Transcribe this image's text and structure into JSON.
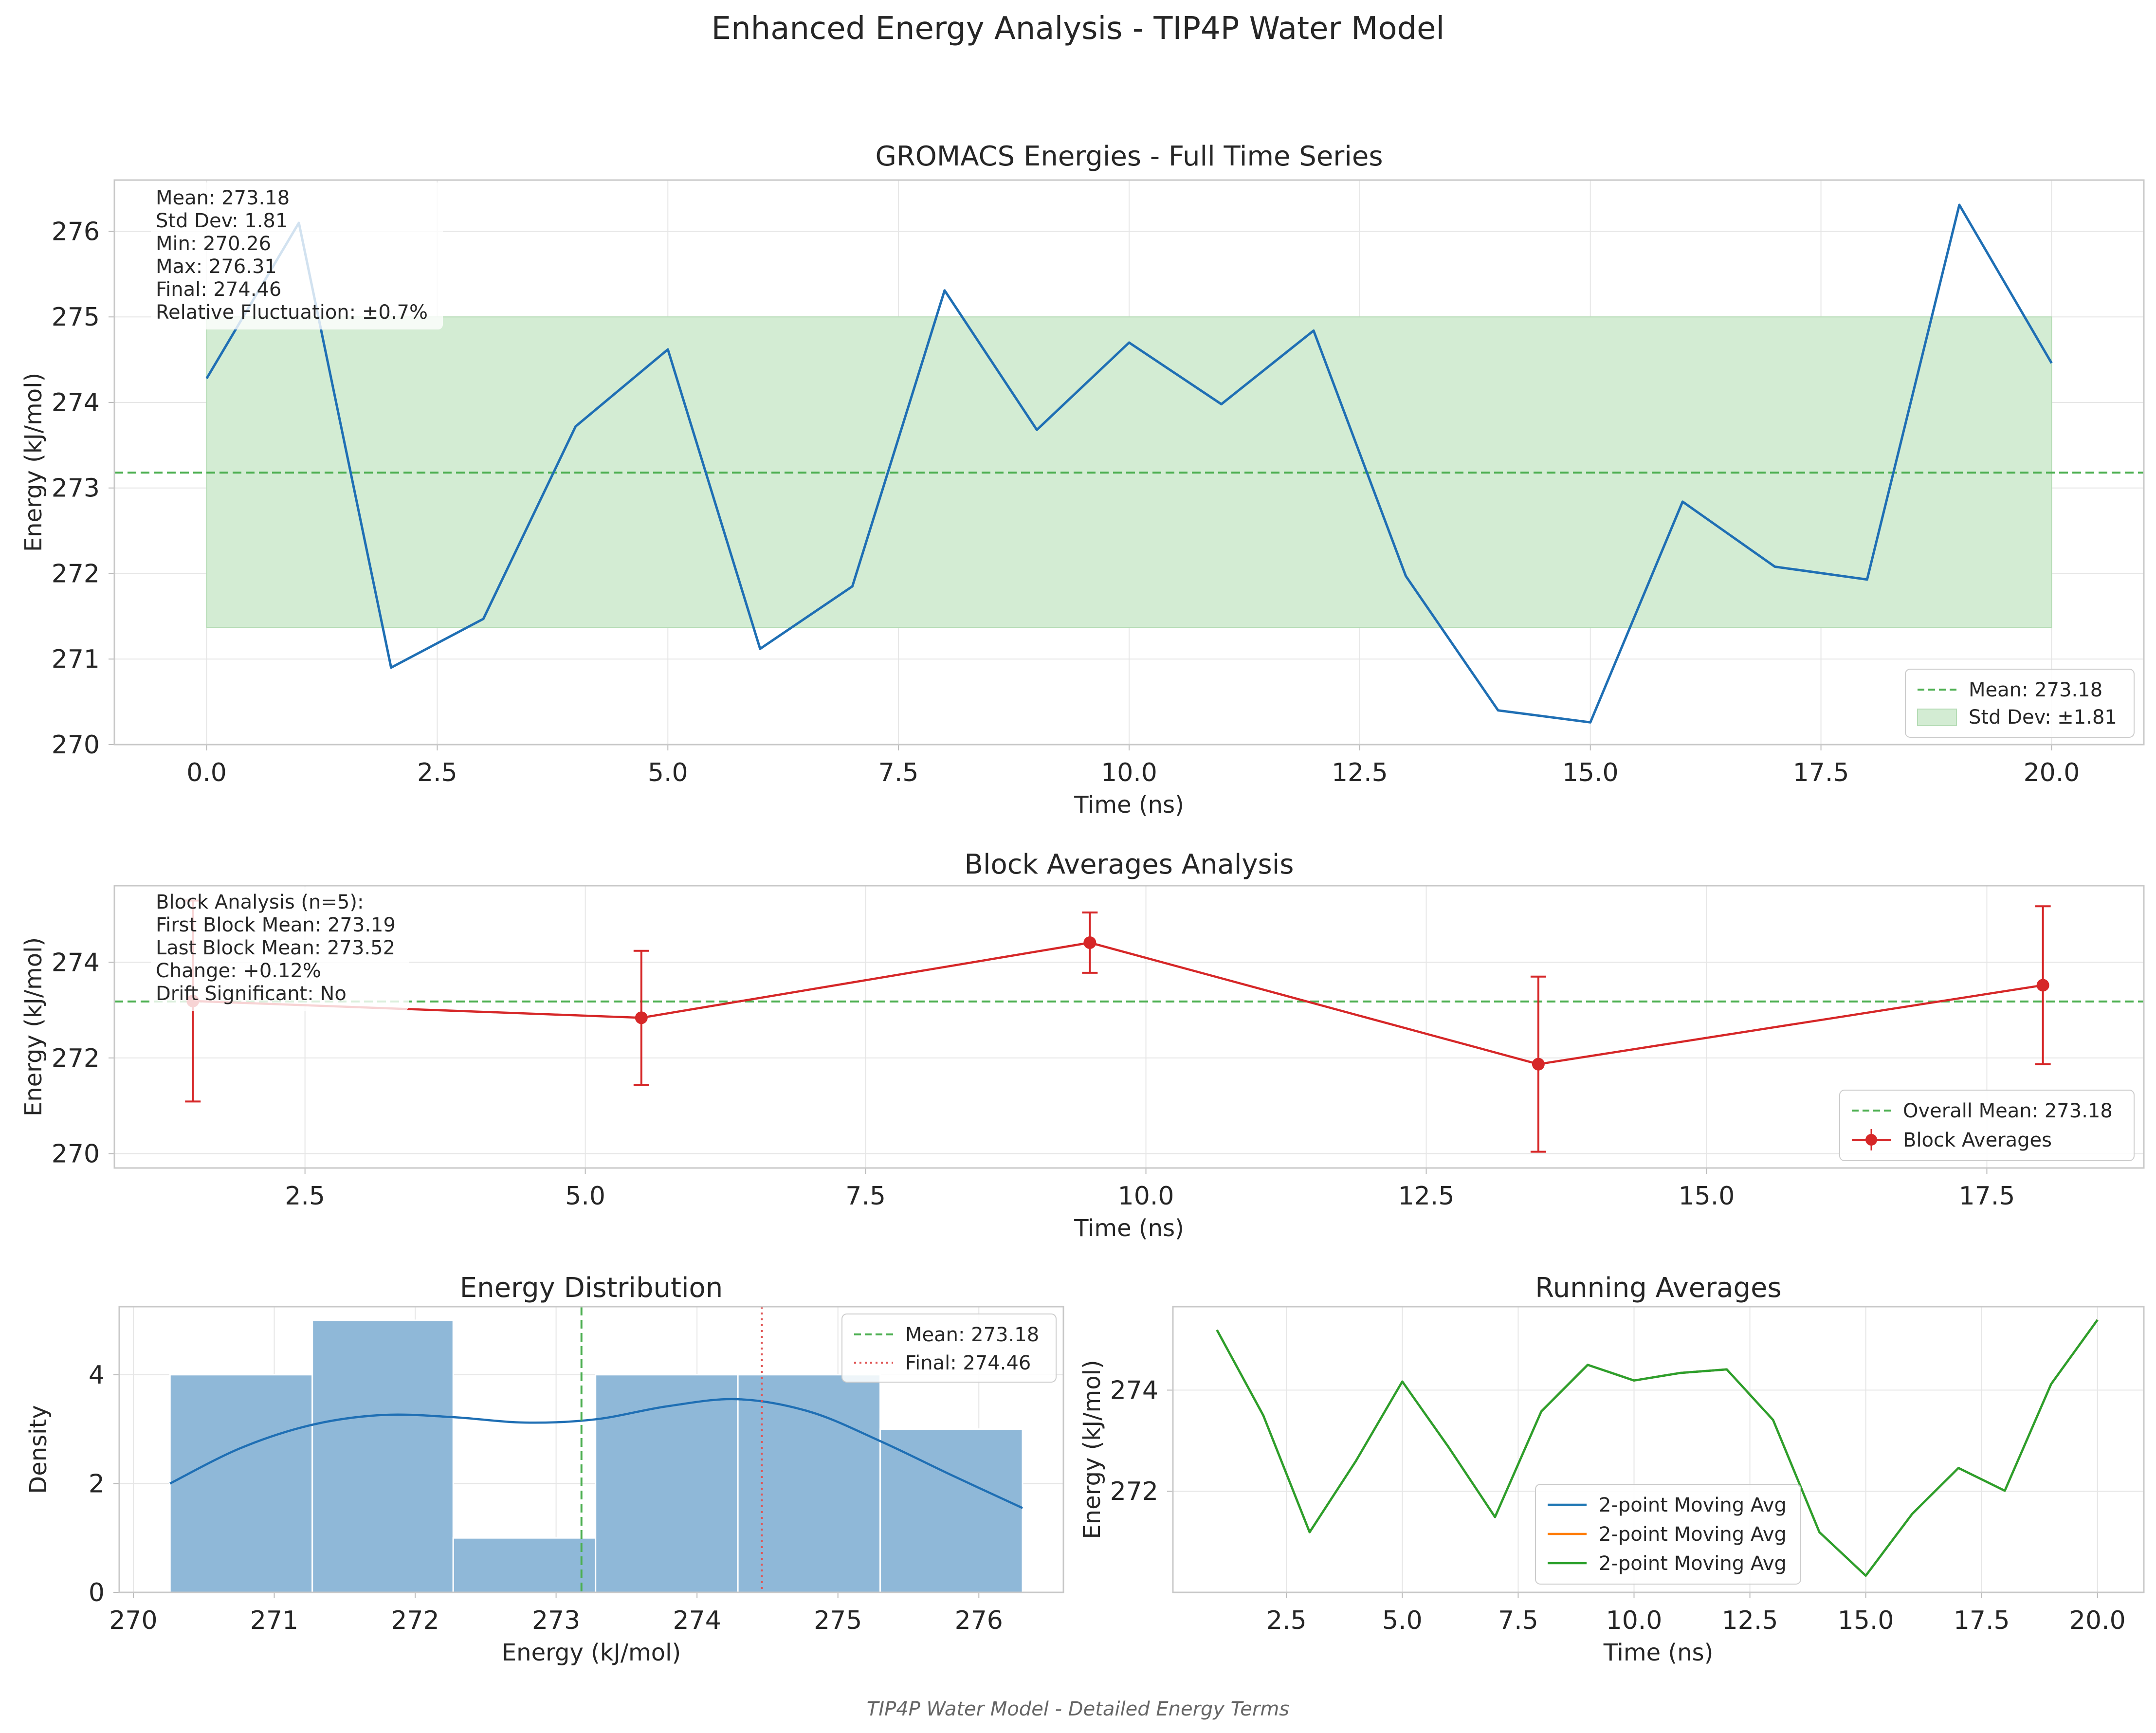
{
  "figure": {
    "title": "Enhanced Energy Analysis - TIP4P Water Model",
    "footer": "TIP4P Water Model - Detailed Energy Terms"
  },
  "colors": {
    "blue": "#1f6fb4",
    "green_dash": "#4caf50",
    "band": "#d3ecd3",
    "red": "#d62728",
    "hist": "#8fb8d8",
    "run_green": "#2ca02c",
    "orange": "#ff7f0e"
  },
  "chart_data": [
    {
      "id": "timeseries",
      "type": "line",
      "title": "GROMACS Energies - Full Time Series",
      "xlabel": "Time (ns)",
      "ylabel": "Energy (kJ/mol)",
      "xlim": [
        -1.0,
        21.0
      ],
      "ylim": [
        270,
        276.6
      ],
      "xticks": [
        0,
        2.5,
        5,
        7.5,
        10,
        12.5,
        15,
        17.5,
        20
      ],
      "xtick_labels": [
        "0.0",
        "2.5",
        "5.0",
        "7.5",
        "10.0",
        "12.5",
        "15.0",
        "17.5",
        "20.0"
      ],
      "yticks": [
        270,
        271,
        272,
        273,
        274,
        275,
        276
      ],
      "ytick_labels": [
        "270",
        "271",
        "272",
        "273",
        "274",
        "275",
        "276"
      ],
      "grid": true,
      "x": [
        0,
        1,
        2,
        3,
        4,
        5,
        6,
        7,
        8,
        9,
        10,
        11,
        12,
        13,
        14,
        15,
        16,
        17,
        18,
        19,
        20
      ],
      "y": [
        274.28,
        276.1,
        270.9,
        271.47,
        273.72,
        274.62,
        271.12,
        271.85,
        275.31,
        273.68,
        274.7,
        273.98,
        274.84,
        271.97,
        270.4,
        270.26,
        272.84,
        272.08,
        271.93,
        276.31,
        274.46
      ],
      "mean": 273.18,
      "band": [
        271.37,
        275.0
      ],
      "legend": [
        "Mean: 273.18",
        "Std Dev: ±1.81"
      ],
      "legend_loc": "lower right",
      "stats": [
        "Mean: 273.18",
        "Std Dev: 1.81",
        "Min: 270.26",
        "Max: 276.31",
        "Final: 274.46",
        "Relative Fluctuation: ±0.7%"
      ]
    },
    {
      "id": "blocks",
      "type": "line",
      "title": "Block Averages Analysis",
      "xlabel": "Time (ns)",
      "ylabel": "Energy (kJ/mol)",
      "xlim": [
        0.8,
        18.9
      ],
      "ylim": [
        269.7,
        275.6
      ],
      "xticks": [
        2.5,
        5,
        7.5,
        10,
        12.5,
        15,
        17.5
      ],
      "xtick_labels": [
        "2.5",
        "5.0",
        "7.5",
        "10.0",
        "12.5",
        "15.0",
        "17.5"
      ],
      "yticks": [
        270,
        272,
        274
      ],
      "ytick_labels": [
        "270",
        "272",
        "274"
      ],
      "grid": true,
      "x": [
        1.5,
        5.5,
        9.5,
        13.5,
        18.0
      ],
      "y": [
        273.19,
        272.84,
        274.41,
        271.87,
        273.52
      ],
      "err": [
        2.1,
        1.4,
        0.63,
        1.83,
        1.65
      ],
      "mean": 273.18,
      "legend": [
        "Overall Mean: 273.18",
        "Block Averages"
      ],
      "legend_loc": "lower right",
      "stats": [
        "Block Analysis (n=5):",
        "First Block Mean: 273.19",
        "Last Block Mean: 273.52",
        "Change: +0.12%",
        "Drift Significant: No"
      ]
    },
    {
      "id": "histogram",
      "type": "bar",
      "title": "Energy Distribution",
      "xlabel": "Energy (kJ/mol)",
      "ylabel": "Density",
      "xlim": [
        269.9,
        276.6
      ],
      "ylim": [
        0,
        5.25
      ],
      "xticks": [
        270,
        271,
        272,
        273,
        274,
        275,
        276
      ],
      "xtick_labels": [
        "270",
        "271",
        "272",
        "273",
        "274",
        "275",
        "276"
      ],
      "yticks": [
        0,
        2,
        4
      ],
      "ytick_labels": [
        "0",
        "2",
        "4"
      ],
      "grid": true,
      "bin_edges": [
        270.26,
        271.27,
        272.27,
        273.28,
        274.29,
        275.3,
        276.31
      ],
      "counts": [
        4,
        5,
        1,
        4,
        4,
        3
      ],
      "kde_x": [
        270.26,
        270.76,
        271.27,
        271.77,
        272.27,
        272.78,
        273.28,
        273.79,
        274.29,
        274.8,
        275.3,
        275.81,
        276.31
      ],
      "kde_y": [
        2.0,
        2.65,
        3.08,
        3.26,
        3.22,
        3.12,
        3.18,
        3.42,
        3.55,
        3.32,
        2.78,
        2.15,
        1.55
      ],
      "mean": 273.18,
      "final": 274.46,
      "legend": [
        "Mean: 273.18",
        "Final: 274.46"
      ],
      "legend_loc": "upper right"
    },
    {
      "id": "running",
      "type": "line",
      "title": "Running Averages",
      "xlabel": "Time (ns)",
      "ylabel": "Energy (kJ/mol)",
      "xlim": [
        0.05,
        21.0
      ],
      "ylim": [
        270.0,
        275.65
      ],
      "xticks": [
        2.5,
        5,
        7.5,
        10,
        12.5,
        15,
        17.5,
        20
      ],
      "xtick_labels": [
        "2.5",
        "5.0",
        "7.5",
        "10.0",
        "12.5",
        "15.0",
        "17.5",
        "20.0"
      ],
      "yticks": [
        272,
        274
      ],
      "ytick_labels": [
        "272",
        "274"
      ],
      "grid": true,
      "x": [
        1,
        2,
        3,
        4,
        5,
        6,
        7,
        8,
        9,
        10,
        11,
        12,
        13,
        14,
        15,
        16,
        17,
        18,
        19,
        20
      ],
      "series": [
        {
          "name": "2-point Moving Avg",
          "color": "#1f77b4",
          "values": [
            275.19,
            273.5,
            271.19,
            272.6,
            274.17,
            272.87,
            271.49,
            273.58,
            274.5,
            274.19,
            274.34,
            274.41,
            273.41,
            271.19,
            270.33,
            271.55,
            272.46,
            272.01,
            274.12,
            275.39
          ]
        },
        {
          "name": "2-point Moving Avg",
          "color": "#ff7f0e",
          "values": [
            275.19,
            273.5,
            271.19,
            272.6,
            274.17,
            272.87,
            271.49,
            273.58,
            274.5,
            274.19,
            274.34,
            274.41,
            273.41,
            271.19,
            270.33,
            271.55,
            272.46,
            272.01,
            274.12,
            275.39
          ]
        },
        {
          "name": "2-point Moving Avg",
          "color": "#2ca02c",
          "values": [
            275.19,
            273.5,
            271.19,
            272.6,
            274.17,
            272.87,
            271.49,
            273.58,
            274.5,
            274.19,
            274.34,
            274.41,
            273.41,
            271.19,
            270.33,
            271.55,
            272.46,
            272.01,
            274.12,
            275.39
          ]
        }
      ],
      "legend_loc": "lower center"
    }
  ]
}
